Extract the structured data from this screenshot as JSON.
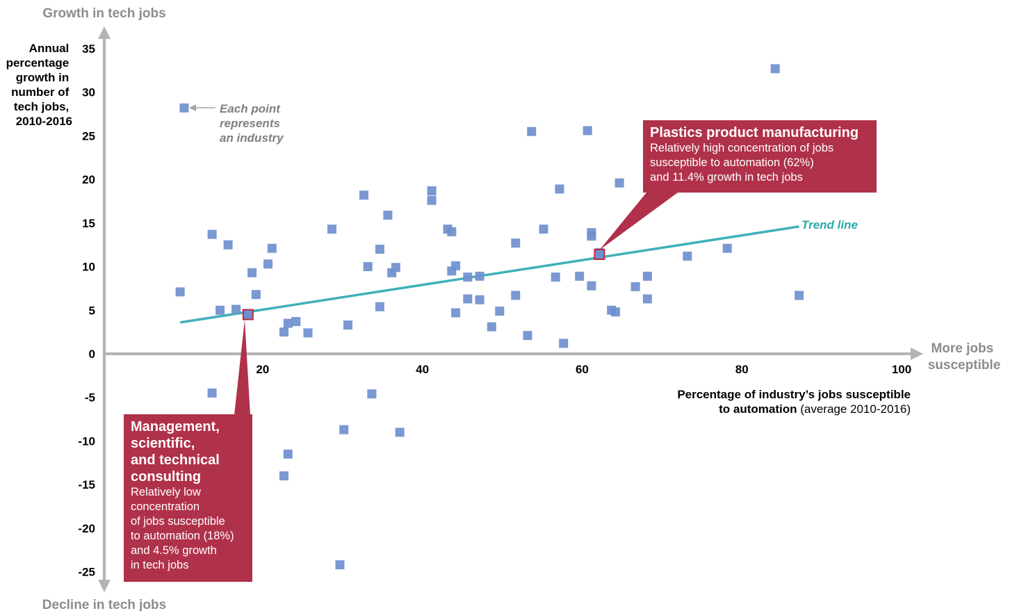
{
  "chart_data": {
    "type": "scatter",
    "y_axis_top_label": "Growth in tech jobs",
    "y_axis_bottom_label": "Decline in tech jobs",
    "y_axis_title": [
      "Annual",
      "percentage",
      "growth in",
      "number of",
      "tech jobs,",
      "2010-2016"
    ],
    "x_axis_right_label": [
      "More jobs",
      "susceptible"
    ],
    "x_axis_title_bold_line1": "Percentage of industry’s jobs susceptible",
    "x_axis_title_bold_line2": "to automation",
    "x_axis_title_normal": " (average 2010-2016)",
    "y_ticks": [
      35,
      30,
      25,
      20,
      15,
      10,
      5,
      0,
      -5,
      -10,
      -15,
      -20,
      -25
    ],
    "x_ticks": [
      20,
      40,
      60,
      80,
      100
    ],
    "xlim": [
      0,
      100
    ],
    "ylim": [
      -25,
      35
    ],
    "point_color": "#6f8fce",
    "points": [
      [
        9.5,
        7.1
      ],
      [
        10,
        28.2
      ],
      [
        13.5,
        13.7
      ],
      [
        14.5,
        5.0
      ],
      [
        15.5,
        12.5
      ],
      [
        16.5,
        5.1
      ],
      [
        18.5,
        9.3
      ],
      [
        19,
        6.8
      ],
      [
        20.5,
        10.3
      ],
      [
        21,
        12.1
      ],
      [
        22.5,
        2.5
      ],
      [
        23,
        3.5
      ],
      [
        24,
        3.7
      ],
      [
        25.5,
        2.4
      ],
      [
        28.5,
        14.3
      ],
      [
        30.5,
        3.3
      ],
      [
        32.5,
        18.2
      ],
      [
        33,
        10.0
      ],
      [
        34.5,
        12.0
      ],
      [
        34.5,
        5.4
      ],
      [
        35.5,
        15.9
      ],
      [
        36,
        9.3
      ],
      [
        36.5,
        9.9
      ],
      [
        41,
        18.7
      ],
      [
        41,
        17.6
      ],
      [
        43,
        14.3
      ],
      [
        43.5,
        14.0
      ],
      [
        43.5,
        9.5
      ],
      [
        44,
        4.7
      ],
      [
        44,
        10.1
      ],
      [
        45.5,
        8.8
      ],
      [
        45.5,
        6.3
      ],
      [
        47,
        8.9
      ],
      [
        47,
        6.2
      ],
      [
        48.5,
        3.1
      ],
      [
        49.5,
        4.9
      ],
      [
        51.5,
        12.7
      ],
      [
        51.5,
        6.7
      ],
      [
        53,
        2.1
      ],
      [
        53.5,
        25.5
      ],
      [
        55,
        14.3
      ],
      [
        56.5,
        8.8
      ],
      [
        57,
        18.9
      ],
      [
        57.5,
        1.2
      ],
      [
        59.5,
        8.9
      ],
      [
        60.5,
        25.6
      ],
      [
        61,
        13.5
      ],
      [
        61,
        7.8
      ],
      [
        61,
        13.9
      ],
      [
        62,
        11.6
      ],
      [
        63.5,
        5.0
      ],
      [
        64,
        4.8
      ],
      [
        64.5,
        19.6
      ],
      [
        66.5,
        7.7
      ],
      [
        68,
        8.9
      ],
      [
        68,
        6.3
      ],
      [
        73,
        11.2
      ],
      [
        78,
        12.1
      ],
      [
        84,
        32.7
      ],
      [
        87,
        6.7
      ],
      [
        13.5,
        -4.5
      ],
      [
        22.5,
        -14.0
      ],
      [
        23,
        -11.5
      ],
      [
        29.5,
        -24.2
      ],
      [
        30,
        -8.7
      ],
      [
        33.5,
        -4.6
      ],
      [
        37,
        -9.0
      ]
    ],
    "trend_line": {
      "label": "Trend line",
      "color": "#3fb0b8",
      "x": [
        9.5,
        87
      ],
      "y": [
        3.6,
        14.6
      ]
    },
    "highlighted": [
      {
        "x": 18,
        "y": 4.5,
        "title": "Management, scientific, and technical consulting"
      },
      {
        "x": 62,
        "y": 11.4,
        "title": "Plastics product manufacturing"
      }
    ],
    "annotation_note": [
      "Each point",
      "represents",
      "an industry"
    ]
  },
  "callouts": {
    "plastics": {
      "title": "Plastics product manufacturing",
      "body": [
        "Relatively high concentration of jobs",
        "susceptible to automation (62%)",
        "and 11.4% growth in tech jobs"
      ]
    },
    "consulting": {
      "title": [
        "Management,",
        "scientific,",
        "and technical",
        "consulting"
      ],
      "body": [
        "Relatively low",
        "concentration",
        "of jobs susceptible",
        "to automation (18%)",
        "and 4.5% growth",
        "in tech jobs"
      ]
    }
  },
  "colors": {
    "callout_bg": "#b0314a",
    "axis": "#b3b3b3",
    "highlight_border": "#c0273c"
  }
}
